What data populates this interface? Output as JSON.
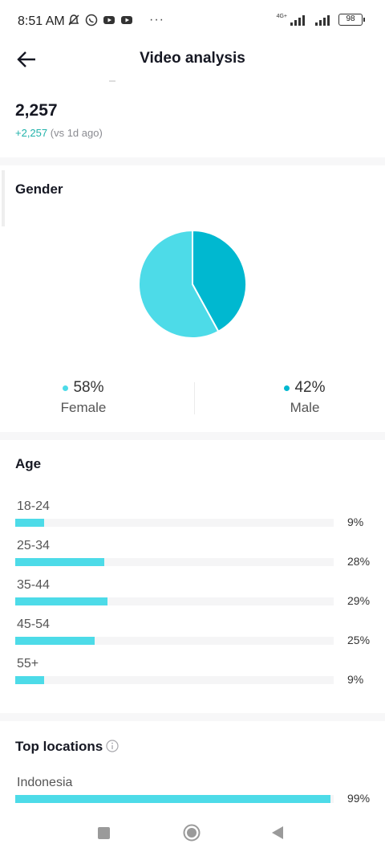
{
  "status_bar": {
    "time": "8:51 AM",
    "more": "···",
    "network": "4G+",
    "battery": "98"
  },
  "header": {
    "title": "Video analysis",
    "back_icon": "arrow-left-icon"
  },
  "summary": {
    "total": "2,257",
    "delta_value": "+2,257",
    "delta_note": "(vs 1d ago)"
  },
  "gender": {
    "title": "Gender",
    "chart_data": {
      "type": "pie",
      "categories": [
        "Female",
        "Male"
      ],
      "values": [
        58,
        42
      ],
      "colors": [
        "#4ddbe8",
        "#00b8d0"
      ]
    },
    "female": {
      "pct": "58%",
      "label": "Female",
      "color": "#4ddbe8"
    },
    "male": {
      "pct": "42%",
      "label": "Male",
      "color": "#00b8d0"
    }
  },
  "age": {
    "title": "Age",
    "chart_data": {
      "type": "bar",
      "categories": [
        "18-24",
        "25-34",
        "35-44",
        "45-54",
        "55+"
      ],
      "values": [
        9,
        28,
        29,
        25,
        9
      ]
    },
    "rows": [
      {
        "label": "18-24",
        "pct": "9%",
        "value": 9
      },
      {
        "label": "25-34",
        "pct": "28%",
        "value": 28
      },
      {
        "label": "35-44",
        "pct": "29%",
        "value": 29
      },
      {
        "label": "45-54",
        "pct": "25%",
        "value": 25
      },
      {
        "label": "55+",
        "pct": "9%",
        "value": 9
      }
    ]
  },
  "locations": {
    "title": "Top locations",
    "info_icon": "info-icon",
    "rows": [
      {
        "label": "Indonesia",
        "pct": "99%",
        "value": 99
      }
    ]
  },
  "colors": {
    "accent": "#4ddbe8",
    "accent_dark": "#00b8d0",
    "delta": "#20b2aa"
  }
}
